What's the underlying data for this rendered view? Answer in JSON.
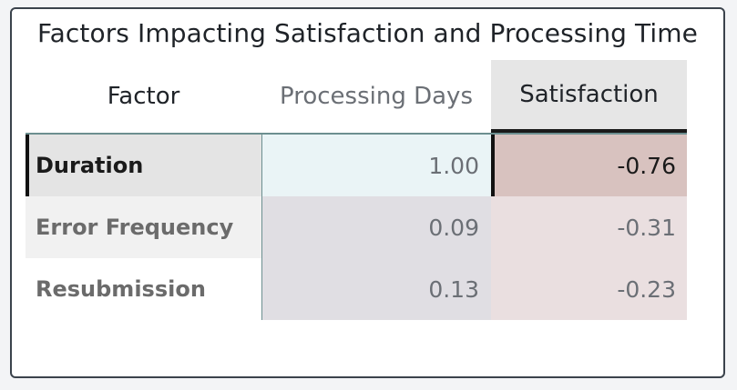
{
  "visual": {
    "title": "Factors Impacting Satisfaction and Processing Time"
  },
  "columns": {
    "factor": "Factor",
    "processing_days": "Processing Days",
    "satisfaction": "Satisfaction"
  },
  "rows": [
    {
      "factor": "Duration",
      "processing_days": "1.00",
      "satisfaction": "-0.76",
      "factor_bg": "#e4e4e4",
      "days_bg": "#eaf4f6",
      "sat_bg": "#d8c2bf",
      "selected": true
    },
    {
      "factor": "Error Frequency",
      "processing_days": "0.09",
      "satisfaction": "-0.31",
      "factor_bg": "#f1f1f1",
      "days_bg": "#e0dee3",
      "sat_bg": "#eadfe0",
      "selected": false
    },
    {
      "factor": "Resubmission",
      "processing_days": "0.13",
      "satisfaction": "-0.23",
      "factor_bg": "#ffffff",
      "days_bg": "#e0dee3",
      "sat_bg": "#eadfe0",
      "selected": false
    }
  ]
}
